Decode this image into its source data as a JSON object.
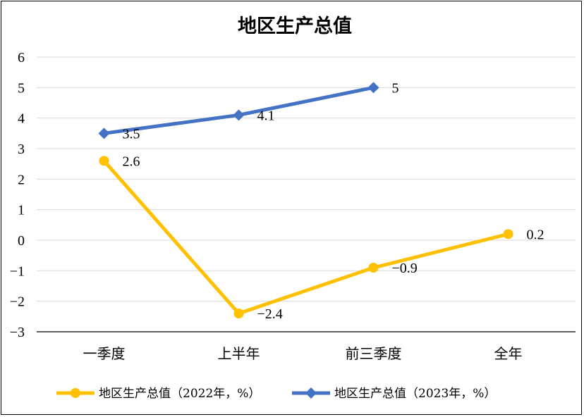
{
  "chart_data": {
    "type": "line",
    "title": "地区生产总值",
    "categories": [
      "一季度",
      "上半年",
      "前三季度",
      "全年"
    ],
    "ylim": [
      -3,
      6
    ],
    "yticks": [
      "6",
      "5",
      "4",
      "3",
      "2",
      "1",
      "0",
      "−1",
      "−2",
      "−3"
    ],
    "ytick_values": [
      6,
      5,
      4,
      3,
      2,
      1,
      0,
      -1,
      -2,
      -3
    ],
    "grid": true,
    "legend_position": "bottom",
    "series": [
      {
        "name": "地区生产总值（2022年，%）",
        "values": [
          2.6,
          -2.4,
          -0.9,
          0.2
        ],
        "labels": [
          "2.6",
          "−2.4",
          "−0.9",
          "0.2"
        ],
        "color": "#FFC000",
        "marker": "circle"
      },
      {
        "name": "地区生产总值（2023年，%）",
        "values": [
          3.5,
          4.1,
          5,
          null
        ],
        "labels": [
          "3.5",
          "4.1",
          "5",
          ""
        ],
        "color": "#4472C4",
        "marker": "diamond"
      }
    ]
  }
}
